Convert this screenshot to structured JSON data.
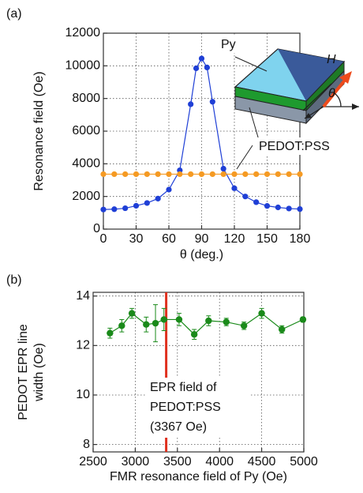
{
  "chart_data": [
    {
      "type": "line",
      "panel_label": "(a)",
      "x_label": "θ (deg.)",
      "y_label": "Resonance field (Oe)",
      "xlim": [
        0,
        180
      ],
      "xticks": [
        0,
        30,
        60,
        90,
        120,
        150,
        180
      ],
      "ylim": [
        0,
        12000
      ],
      "yticks": [
        0,
        2000,
        4000,
        6000,
        8000,
        10000,
        12000
      ],
      "grid": true,
      "series": [
        {
          "color": "#1f3fd6",
          "x": [
            0,
            10,
            20,
            30,
            40,
            50,
            60,
            70,
            80,
            85,
            90,
            95,
            100,
            110,
            120,
            130,
            140,
            150,
            160,
            170,
            180
          ],
          "values": [
            1200,
            1220,
            1280,
            1430,
            1600,
            1870,
            2420,
            3600,
            7650,
            9850,
            10450,
            9900,
            7800,
            3700,
            2500,
            2000,
            1650,
            1420,
            1330,
            1260,
            1230
          ]
        },
        {
          "color": "#f59a23",
          "x": [
            0,
            10,
            20,
            30,
            40,
            50,
            60,
            70,
            80,
            90,
            100,
            110,
            120,
            130,
            140,
            150,
            160,
            170,
            180
          ],
          "values": [
            3367,
            3367,
            3367,
            3367,
            3367,
            3367,
            3367,
            3367,
            3367,
            3367,
            3367,
            3367,
            3367,
            3367,
            3367,
            3367,
            3367,
            3367,
            3367
          ]
        }
      ],
      "annotations": {
        "py": "Py",
        "pedot": "PEDOT:PSS",
        "field": "H",
        "angle": "θ"
      }
    },
    {
      "type": "line",
      "panel_label": "(b)",
      "x_label": "FMR resonance field of Py (Oe)",
      "y_label": [
        "PEDOT EPR line",
        "width (Oe)"
      ],
      "xlim": [
        2500,
        5000
      ],
      "xticks": [
        2500,
        3000,
        3500,
        4000,
        4500,
        5000
      ],
      "ylim": [
        7.7,
        14.15
      ],
      "yticks": [
        8,
        10,
        12,
        14
      ],
      "grid": true,
      "series": [
        {
          "color": "#1a8a1a",
          "x": [
            2700,
            2840,
            2960,
            3130,
            3240,
            3340,
            3520,
            3700,
            3870,
            4080,
            4290,
            4500,
            4740,
            4990
          ],
          "values": [
            12.5,
            12.8,
            13.3,
            12.85,
            12.9,
            13.05,
            13.05,
            12.45,
            13.0,
            12.95,
            12.8,
            13.3,
            12.65,
            13.05
          ],
          "errors": [
            0.2,
            0.25,
            0.2,
            0.3,
            0.75,
            0.45,
            0.25,
            0.2,
            0.2,
            0.15,
            0.15,
            0.2,
            0.15,
            0.1
          ]
        }
      ],
      "epr_line": {
        "value": 3367,
        "color": "#e0301e"
      },
      "annotation": [
        "EPR field of",
        "PEDOT:PSS",
        "(3367 Oe)"
      ]
    }
  ]
}
